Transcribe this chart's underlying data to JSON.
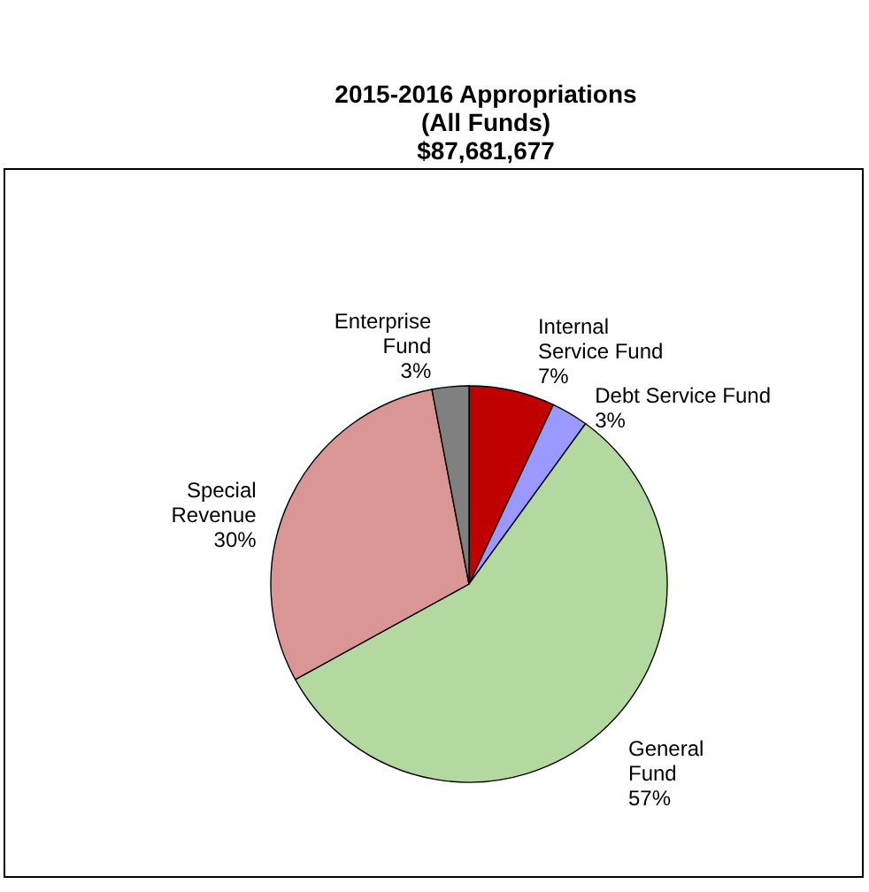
{
  "chart_data": {
    "type": "pie",
    "title": "2015-2016  Appropriations\n(All Funds)\n$87,681,677",
    "categories": [
      "Internal\nService Fund",
      "Debt Service Fund",
      "General\nFund",
      "Special\nRevenue",
      "Enterprise\nFund"
    ],
    "values": [
      7,
      3,
      57,
      30,
      3
    ],
    "value_labels": [
      "7%",
      "3%",
      "57%",
      "30%",
      "3%"
    ],
    "colors": [
      "#c00000",
      "#9999ff",
      "#b3d9a0",
      "#d99694",
      "#808080"
    ],
    "legend": false
  }
}
